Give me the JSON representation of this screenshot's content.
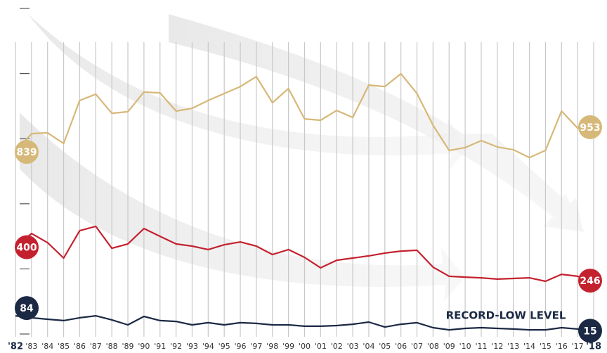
{
  "chart_data": {
    "type": "line",
    "categories": [
      "'82",
      "'83",
      "'84",
      "'85",
      "'86",
      "'87",
      "'88",
      "'89",
      "'90",
      "'91",
      "'92",
      "'93",
      "'94",
      "'95",
      "'96",
      "'97",
      "'98",
      "'99",
      "'00",
      "'01",
      "'02",
      "'03",
      "'04",
      "'05",
      "'06",
      "'07",
      "'08",
      "'09",
      "'10",
      "'11",
      "'12",
      "'13",
      "'14",
      "'15",
      "'16",
      "'17",
      "'18"
    ],
    "series": [
      {
        "color": "#d6b878",
        "values": [
          839,
          923,
          927,
          878,
          1076,
          1105,
          1017,
          1024,
          1115,
          1111,
          1027,
          1040,
          1076,
          1108,
          1140,
          1186,
          1066,
          1131,
          991,
          985,
          1030,
          998,
          1147,
          1140,
          1199,
          1108,
          962,
          846,
          859,
          891,
          862,
          849,
          813,
          846,
          1027,
          949,
          953
        ]
      },
      {
        "color": "#c4212f",
        "values": [
          400,
          463,
          421,
          350,
          476,
          496,
          395,
          415,
          486,
          450,
          415,
          405,
          389,
          411,
          424,
          405,
          366,
          389,
          353,
          305,
          340,
          350,
          360,
          373,
          382,
          386,
          308,
          266,
          262,
          259,
          253,
          256,
          259,
          243,
          275,
          266,
          246
        ]
      },
      {
        "color": "#1b2944",
        "values": [
          84,
          75,
          68,
          62,
          75,
          84,
          65,
          42,
          81,
          62,
          58,
          42,
          52,
          42,
          52,
          49,
          42,
          42,
          36,
          36,
          39,
          45,
          55,
          32,
          45,
          52,
          29,
          19,
          26,
          29,
          26,
          23,
          19,
          19,
          29,
          23,
          15
        ]
      }
    ],
    "ylim": [
      0,
      1500
    ],
    "yticks": [
      0,
      300,
      600,
      900,
      1200,
      1500
    ],
    "annotation": "RECORD-LOW LEVEL"
  }
}
